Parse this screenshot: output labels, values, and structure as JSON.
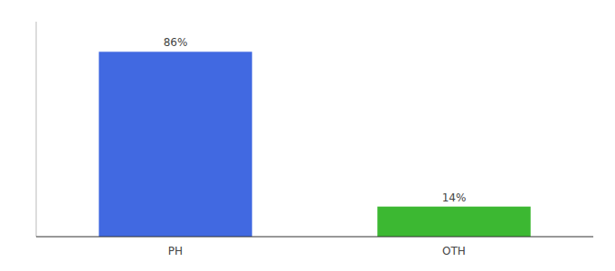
{
  "chart_data": {
    "type": "bar",
    "categories": [
      "PH",
      "OTH"
    ],
    "values": [
      86,
      14
    ],
    "value_labels": [
      "86%",
      "14%"
    ],
    "colors": [
      "#4169e1",
      "#3cb832"
    ],
    "ylim": [
      0,
      100
    ],
    "data_labels": true,
    "tick_labels": "x"
  }
}
